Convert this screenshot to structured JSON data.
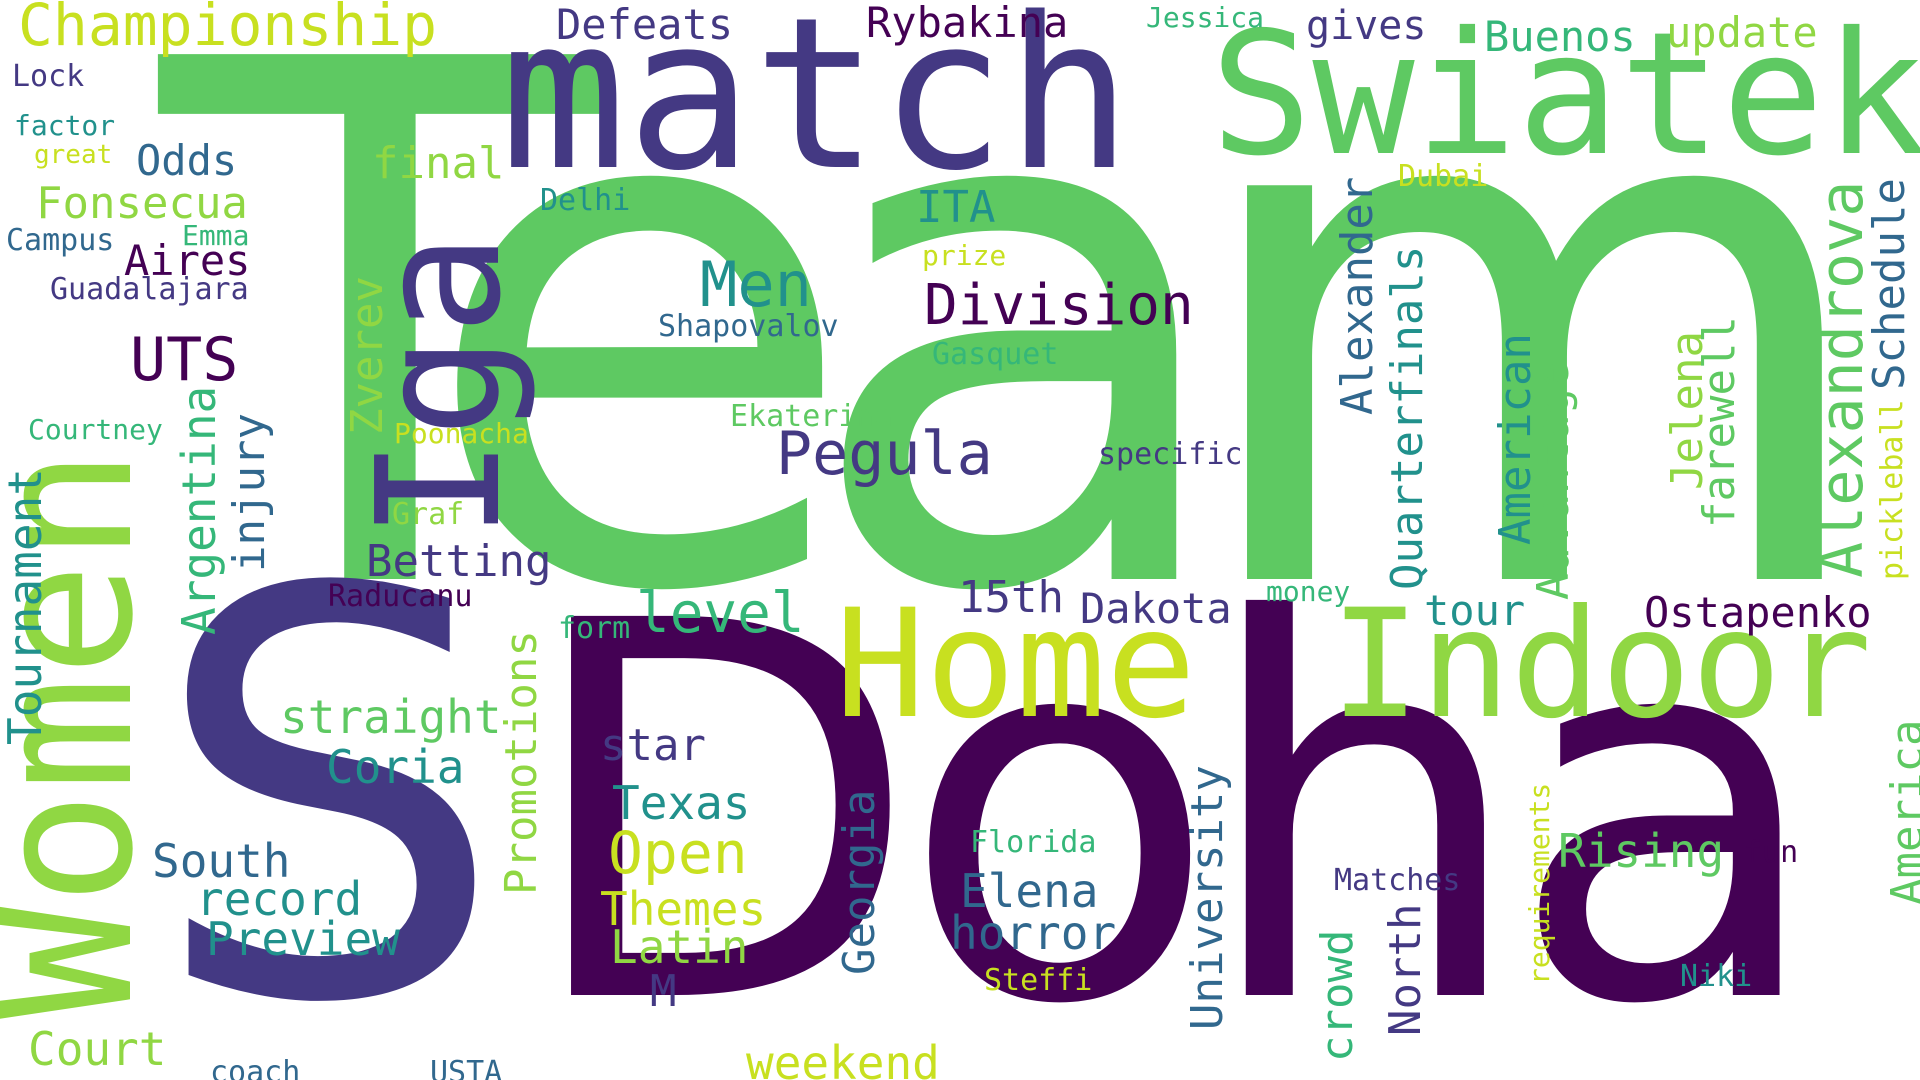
{
  "palette": {
    "dark_purple": "#440154",
    "indigo": "#443983",
    "blue": "#31688e",
    "teal": "#21918c",
    "sea": "#35b779",
    "green": "#5ec962",
    "lime": "#90d743",
    "yellow": "#c8e020"
  },
  "words": {
    "team": "Team",
    "doha": "Doha",
    "s": "S",
    "match": "match",
    "swiatek": "Swiatek",
    "women": "Women",
    "home": "Home",
    "indoor": "Indoor",
    "iga": "Iga",
    "championship": "Championship",
    "defeats": "Defeats",
    "rybakina": "Rybakina",
    "jessica": "Jessica",
    "gives": "gives",
    "buenos": "Buenos",
    "update": "update",
    "lock": "Lock",
    "factor": "factor",
    "great": "great",
    "odds": "Odds",
    "final": "final",
    "delhi": "Delhi",
    "dubai": "Dubai",
    "fonsecua": "Fonsecua",
    "campus": "Campus",
    "emma": "Emma",
    "aires": "Aires",
    "guadalajara": "Guadalajara",
    "ita": "ITA",
    "prize": "prize",
    "men": "Men",
    "division": "Division",
    "uts": "UTS",
    "shapovalov": "Shapovalov",
    "gasquet": "Gasquet",
    "alexandrova": "Alexandrova",
    "schedule": "Schedule",
    "pickleball": "pickleball",
    "alexander": "Alexander",
    "quarterfinals": "Quarterfinals",
    "american": "American",
    "advantage": "Advantage",
    "jelena": "Jelena",
    "farewell": "farewell",
    "zverev": "Zverev",
    "courtney": "Courtney",
    "poonacha": "Poonacha",
    "ekaterina": "Ekaterina",
    "pegula": "Pegula",
    "specific": "specific",
    "argentina": "Argentina",
    "injury": "injury",
    "graf": "Graf",
    "betting": "Betting",
    "tournament": "Tournament",
    "raducanu": "Raducanu",
    "fifteenth": "15th",
    "dakota": "Dakota",
    "money": "money",
    "tour": "tour",
    "ostapenko": "Ostapenko",
    "form": "form",
    "level": "level",
    "straight": "straight",
    "promotions": "Promotions",
    "coria": "Coria",
    "star": "star",
    "south": "South",
    "record": "record",
    "preview": "Preview",
    "texas": "Texas",
    "open": "Open",
    "themes": "Themes",
    "latin": "Latin",
    "m": "M",
    "georgia": "Georgia",
    "florida": "Florida",
    "elena": "Elena",
    "horror": "horror",
    "university": "University",
    "rising": "Rising",
    "requirements": "requirements",
    "fun": "fun",
    "america": "America",
    "matches": "Matches",
    "north": "North",
    "crowd": "crowd",
    "steffi": "Steffi",
    "niki": "Niki",
    "court": "Court",
    "coach": "coach",
    "usta": "USTA",
    "weekend": "weekend"
  }
}
